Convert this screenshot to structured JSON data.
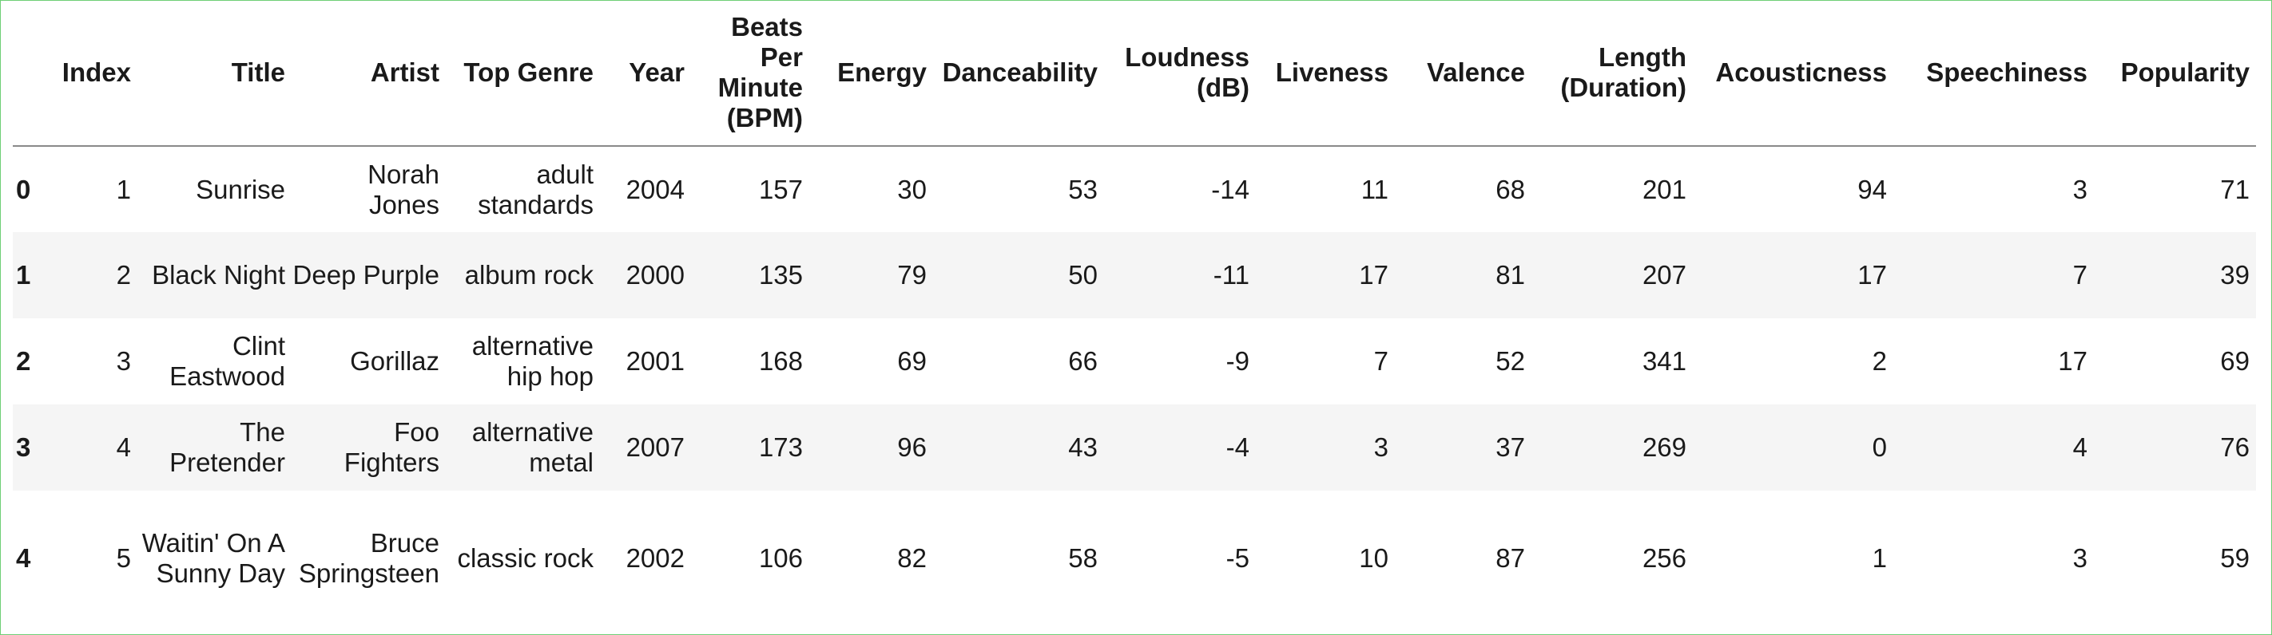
{
  "table": {
    "columns": [
      "Index",
      "Title",
      "Artist",
      "Top Genre",
      "Year",
      "Beats Per Minute (BPM)",
      "Energy",
      "Danceability",
      "Loudness (dB)",
      "Liveness",
      "Valence",
      "Length (Duration)",
      "Acousticness",
      "Speechiness",
      "Popularity"
    ],
    "rows": [
      {
        "idx": "0",
        "cells": [
          "1",
          "Sunrise",
          "Norah Jones",
          "adult standards",
          "2004",
          "157",
          "30",
          "53",
          "-14",
          "11",
          "68",
          "201",
          "94",
          "3",
          "71"
        ]
      },
      {
        "idx": "1",
        "cells": [
          "2",
          "Black Night",
          "Deep Purple",
          "album rock",
          "2000",
          "135",
          "79",
          "50",
          "-11",
          "17",
          "81",
          "207",
          "17",
          "7",
          "39"
        ]
      },
      {
        "idx": "2",
        "cells": [
          "3",
          "Clint Eastwood",
          "Gorillaz",
          "alternative hip hop",
          "2001",
          "168",
          "69",
          "66",
          "-9",
          "7",
          "52",
          "341",
          "2",
          "17",
          "69"
        ]
      },
      {
        "idx": "3",
        "cells": [
          "4",
          "The Pretender",
          "Foo Fighters",
          "alternative metal",
          "2007",
          "173",
          "96",
          "43",
          "-4",
          "3",
          "37",
          "269",
          "0",
          "4",
          "76"
        ]
      },
      {
        "idx": "4",
        "cells": [
          "5",
          "Waitin' On A Sunny Day",
          "Bruce Springsteen",
          "classic rock",
          "2002",
          "106",
          "82",
          "58",
          "-5",
          "10",
          "87",
          "256",
          "1",
          "3",
          "59"
        ]
      }
    ]
  }
}
